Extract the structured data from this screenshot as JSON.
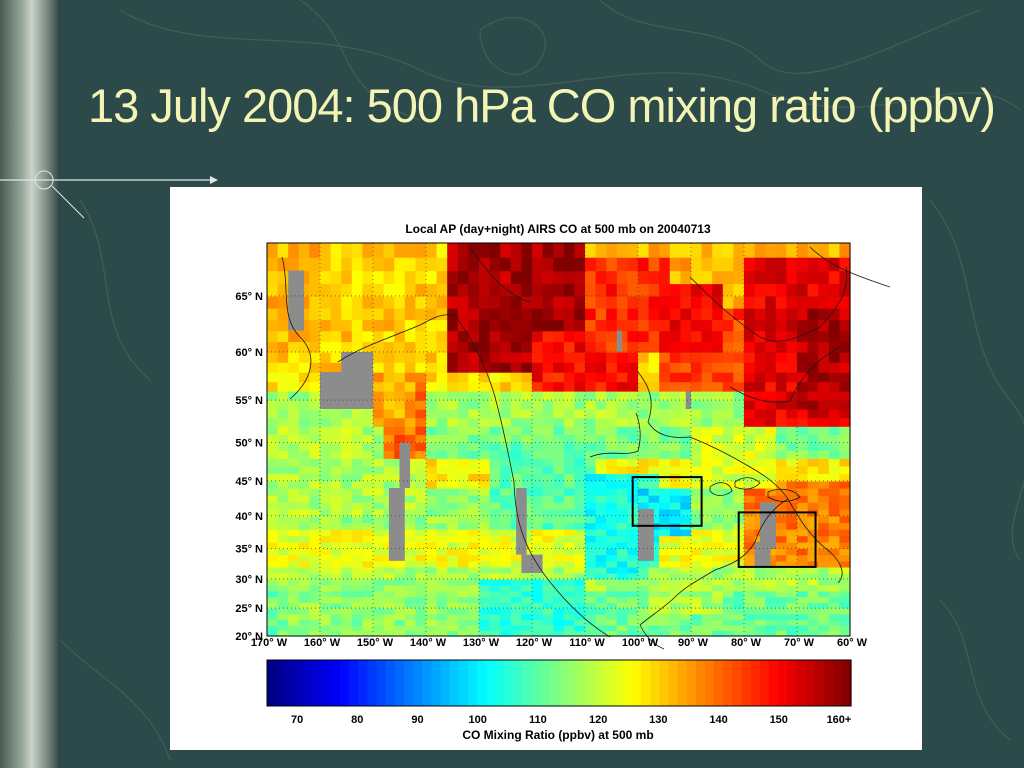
{
  "slide": {
    "title": "13 July 2004: 500 hPa CO mixing ratio (ppbv)"
  },
  "chart_data": {
    "type": "heatmap",
    "title": "Local AP (day+night) AIRS CO at 500 mb on 20040713",
    "x": {
      "ticks": [
        -170,
        -160,
        -150,
        -140,
        -130,
        -120,
        -110,
        -100,
        -90,
        -80,
        -70,
        -60
      ],
      "tick_labels": [
        "170",
        "160",
        "150",
        "140",
        "130",
        "120",
        "110",
        "100",
        "90",
        "80",
        "70",
        "60"
      ],
      "tick_suffix": "W",
      "range": [
        -170,
        -60
      ]
    },
    "y": {
      "ticks": [
        20,
        25,
        30,
        35,
        40,
        45,
        50,
        55,
        60,
        65
      ],
      "tick_labels": [
        "20",
        "25",
        "30",
        "35",
        "40",
        "45",
        "50",
        "55",
        "60",
        "65"
      ],
      "tick_suffix": "N",
      "scale": "mercator",
      "range": [
        20,
        69
      ]
    },
    "grid": true,
    "colorbar": {
      "label": "CO Mixing Ratio (ppbv) at 500 mb",
      "range": [
        65,
        162
      ],
      "ticks": [
        70,
        80,
        90,
        100,
        110,
        120,
        130,
        140,
        150,
        160
      ],
      "tick_labels": [
        "70",
        "80",
        "90",
        "100",
        "110",
        "120",
        "130",
        "140",
        "150",
        "160+"
      ],
      "colormap": "jet"
    },
    "boxes": [
      {
        "name": "box-great-lakes",
        "lon": [
          -101,
          -88
        ],
        "lat": [
          38.5,
          45.5
        ]
      },
      {
        "name": "box-northeast",
        "lon": [
          -81,
          -66.5
        ],
        "lat": [
          32,
          40.5
        ]
      }
    ],
    "value_regions": [
      {
        "lon": [
          -170,
          -60
        ],
        "lat": [
          20,
          69
        ],
        "value": 122
      },
      {
        "lon": [
          -170,
          -60
        ],
        "lat": [
          20,
          28
        ],
        "value": 112
      },
      {
        "lon": [
          -170,
          -60
        ],
        "lat": [
          28,
          32
        ],
        "value": 118
      },
      {
        "lon": [
          -170,
          -60
        ],
        "lat": [
          32,
          38
        ],
        "value": 124
      },
      {
        "lon": [
          -170,
          -60
        ],
        "lat": [
          38,
          44
        ],
        "value": 116
      },
      {
        "lon": [
          -170,
          -60
        ],
        "lat": [
          44,
          48
        ],
        "value": 127
      },
      {
        "lon": [
          -170,
          -60
        ],
        "lat": [
          48,
          52
        ],
        "value": 113
      },
      {
        "lon": [
          -170,
          -60
        ],
        "lat": [
          52,
          56
        ],
        "value": 117
      },
      {
        "lon": [
          -170,
          -60
        ],
        "lat": [
          56,
          60
        ],
        "value": 129
      },
      {
        "lon": [
          -170,
          -60
        ],
        "lat": [
          60,
          69
        ],
        "value": 133
      },
      {
        "lon": [
          -128,
          -108
        ],
        "lat": [
          38,
          50
        ],
        "value": 110
      },
      {
        "lon": [
          -110,
          -96
        ],
        "lat": [
          30,
          46
        ],
        "value": 104
      },
      {
        "lon": [
          -100,
          -90
        ],
        "lat": [
          37,
          44
        ],
        "value": 100
      },
      {
        "lon": [
          -98,
          -85
        ],
        "lat": [
          24,
          32
        ],
        "value": 118
      },
      {
        "lon": [
          -80,
          -60
        ],
        "lat": [
          32,
          45
        ],
        "value": 138
      },
      {
        "lon": [
          -90,
          -75
        ],
        "lat": [
          44,
          52
        ],
        "value": 122
      },
      {
        "lon": [
          -170,
          -140
        ],
        "lat": [
          40,
          52
        ],
        "value": 118
      },
      {
        "lon": [
          -138,
          -110
        ],
        "lat": [
          20,
          30
        ],
        "value": 106
      },
      {
        "lon": [
          -165,
          -130
        ],
        "lat": [
          20,
          30
        ],
        "value": 115
      },
      {
        "lon": [
          -160,
          -130
        ],
        "lat": [
          58,
          69
        ],
        "value": 130
      },
      {
        "lon": [
          -135,
          -110
        ],
        "lat": [
          58,
          69
        ],
        "value": 158
      },
      {
        "lon": [
          -120,
          -100
        ],
        "lat": [
          56,
          62
        ],
        "value": 149
      },
      {
        "lon": [
          -110,
          -95
        ],
        "lat": [
          60,
          68
        ],
        "value": 146
      },
      {
        "lon": [
          -95,
          -80
        ],
        "lat": [
          56,
          64
        ],
        "value": 144
      },
      {
        "lon": [
          -80,
          -60
        ],
        "lat": [
          52,
          68
        ],
        "value": 152
      },
      {
        "lon": [
          -70,
          -60
        ],
        "lat": [
          54,
          64
        ],
        "value": 157
      },
      {
        "lon": [
          -95,
          -85
        ],
        "lat": [
          60,
          66
        ],
        "value": 150
      },
      {
        "lon": [
          -148,
          -140
        ],
        "lat": [
          48,
          58
        ],
        "value": 140
      },
      {
        "lon": [
          -150,
          -142
        ],
        "lat": [
          52,
          58
        ],
        "value": 134
      }
    ],
    "missing_regions": [
      {
        "lon": [
          -166,
          -163
        ],
        "lat": [
          62,
          67
        ]
      },
      {
        "lon": [
          -156,
          -150
        ],
        "lat": [
          54,
          60
        ]
      },
      {
        "lon": [
          -160,
          -155
        ],
        "lat": [
          54,
          58
        ]
      },
      {
        "lon": [
          -147,
          -144
        ],
        "lat": [
          33,
          44
        ]
      },
      {
        "lon": [
          -145,
          -143
        ],
        "lat": [
          44,
          50
        ]
      },
      {
        "lon": [
          -123,
          -121
        ],
        "lat": [
          34,
          44
        ]
      },
      {
        "lon": [
          -122,
          -118
        ],
        "lat": [
          31,
          34
        ]
      },
      {
        "lon": [
          -100,
          -97
        ],
        "lat": [
          33,
          41
        ]
      },
      {
        "lon": [
          -77,
          -74
        ],
        "lat": [
          35,
          42
        ]
      },
      {
        "lon": [
          -78,
          -75
        ],
        "lat": [
          32,
          36
        ]
      },
      {
        "lon": [
          -91,
          -90
        ],
        "lat": [
          54,
          56
        ]
      },
      {
        "lon": [
          -104,
          -103
        ],
        "lat": [
          60,
          62
        ]
      }
    ]
  }
}
